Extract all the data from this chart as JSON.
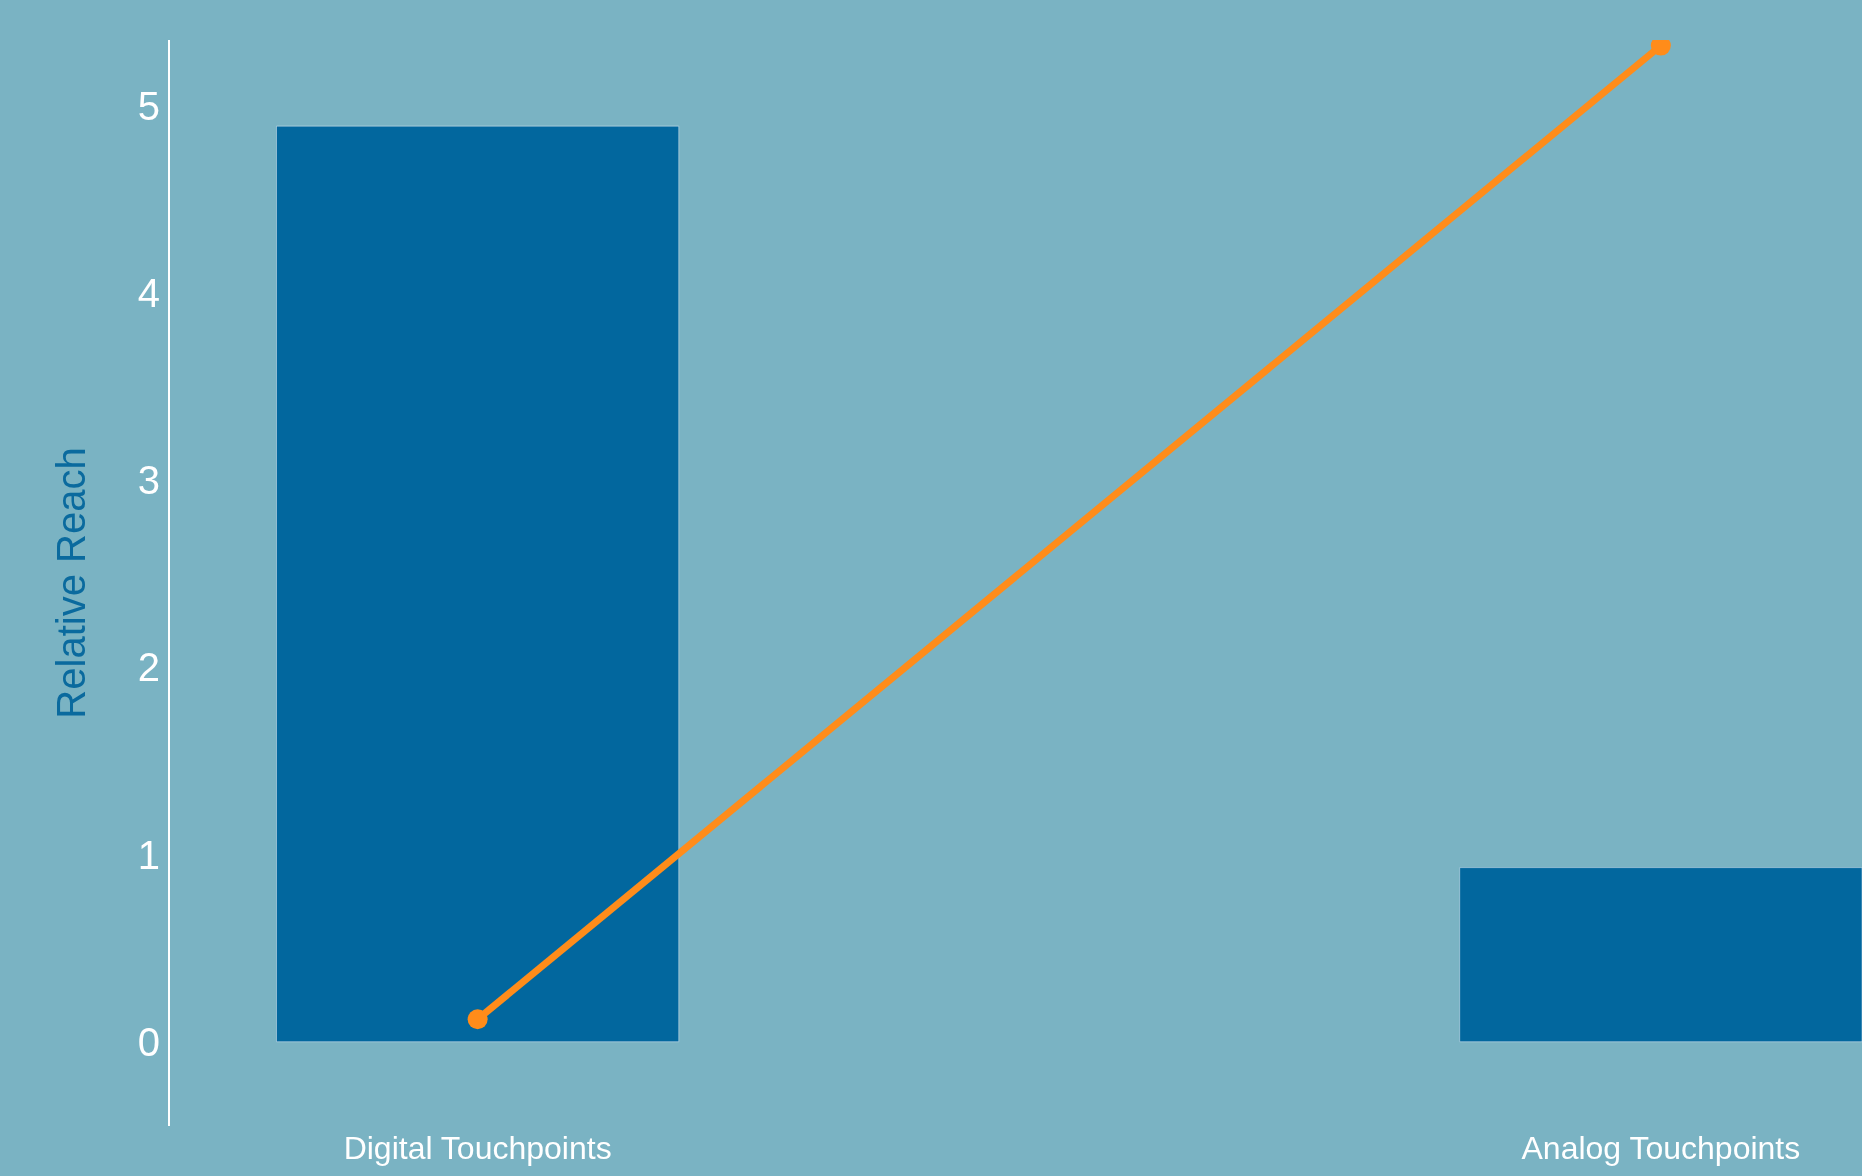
{
  "chart_data": {
    "type": "bar",
    "ylabel": "Relative Reach",
    "categories": [
      "Digital Touchpoints",
      "Analog Touchpoints"
    ],
    "series": [
      {
        "color": "#02679e",
        "values": [
          4.89,
          0.93
        ]
      },
      {
        "type": "line",
        "color": "#ff8c1a",
        "values": [
          0.12,
          5.32
        ],
        "marker": "circle",
        "line_style": "solid"
      }
    ],
    "ylim": [
      -0.45,
      5.35
    ],
    "yticks": [
      0,
      1,
      2,
      3,
      4,
      5
    ],
    "grid": false,
    "legend": false
  }
}
